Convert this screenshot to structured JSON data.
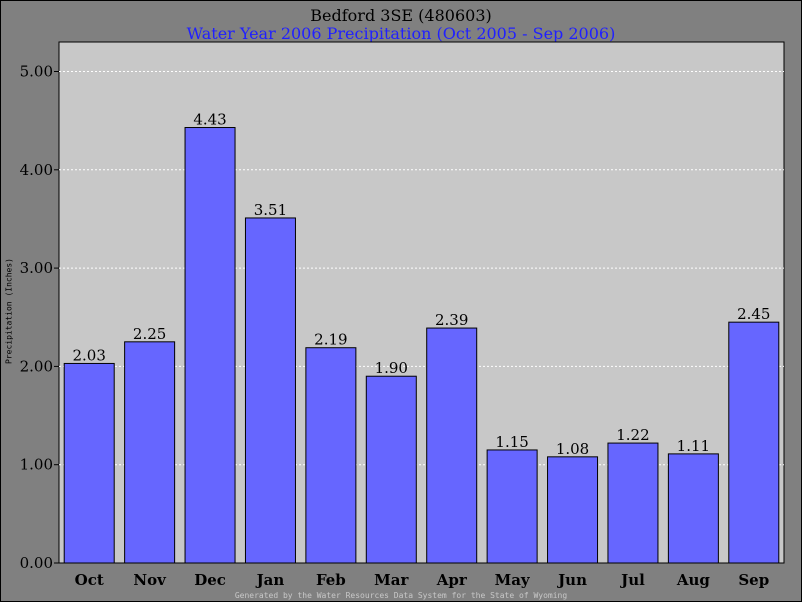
{
  "chart_data": {
    "type": "bar",
    "title": "Bedford 3SE (480603)",
    "subtitle": "Water Year 2006 Precipitation (Oct 2005 - Sep 2006)",
    "ylabel": "Precipitation (Inches)",
    "xlabel": "",
    "categories": [
      "Oct",
      "Nov",
      "Dec",
      "Jan",
      "Feb",
      "Mar",
      "Apr",
      "May",
      "Jun",
      "Jul",
      "Aug",
      "Sep"
    ],
    "values": [
      2.03,
      2.25,
      4.43,
      3.51,
      2.19,
      1.9,
      2.39,
      1.15,
      1.08,
      1.22,
      1.11,
      2.45
    ],
    "value_labels": [
      "2.03",
      "2.25",
      "4.43",
      "3.51",
      "2.19",
      "1.90",
      "2.39",
      "1.15",
      "1.08",
      "1.22",
      "1.11",
      "2.45"
    ],
    "ylim": [
      0,
      5.3
    ],
    "yticks": [
      0,
      1,
      2,
      3,
      4,
      5
    ],
    "ytick_labels": [
      "0.00",
      "1.00",
      "2.00",
      "3.00",
      "4.00",
      "5.00"
    ],
    "grid": true,
    "bar_color": "#6666ff",
    "plot_background": "#c8c8c8",
    "background": "#808080"
  },
  "footer": "Generated by the Water Resources Data System for the State of Wyoming"
}
